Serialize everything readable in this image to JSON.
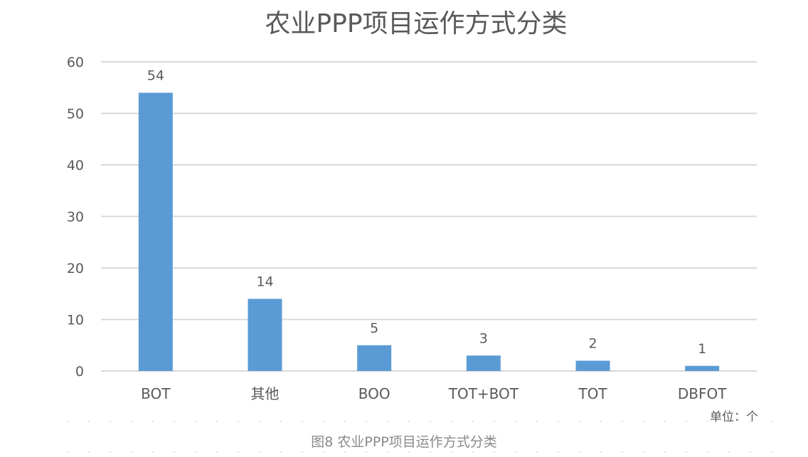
{
  "chart_data": {
    "type": "bar",
    "title": "农业PPP项目运作方式分类",
    "categories": [
      "BOT",
      "其他",
      "BOO",
      "TOT+BOT",
      "TOT",
      "DBFOT"
    ],
    "values": [
      54,
      14,
      5,
      3,
      2,
      1
    ],
    "data_labels": [
      "54",
      "14",
      "5",
      "3",
      "2",
      "1"
    ],
    "ylim": [
      0,
      60
    ],
    "yticks": [
      0,
      10,
      20,
      30,
      40,
      50,
      60
    ],
    "grid": true,
    "legend": "none",
    "bar_color": "#5b9bd5"
  },
  "unit_note": "单位：个",
  "caption": "图8  农业PPP项目运作方式分类",
  "colors": {
    "bar": "#5b9bd5",
    "grid": "#d9d9d9",
    "axis_text": "#595959",
    "title_text": "#595959",
    "caption_text": "#8a8a8a"
  }
}
